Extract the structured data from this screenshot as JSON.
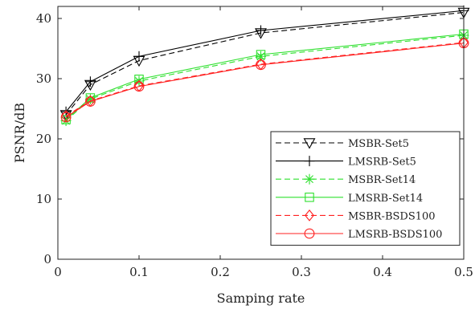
{
  "chart_data": {
    "type": "line",
    "title": "",
    "xlabel": "Samping rate",
    "ylabel": "PSNR/dB",
    "xlim": [
      0,
      0.5
    ],
    "ylim": [
      0,
      42
    ],
    "xticks": [
      0,
      0.1,
      0.2,
      0.3,
      0.4,
      0.5
    ],
    "xtick_labels": [
      "0",
      "0.1",
      "0.2",
      "0.3",
      "0.4",
      "0.5"
    ],
    "yticks": [
      0,
      10,
      20,
      30,
      40
    ],
    "ytick_labels": [
      "0",
      "10",
      "20",
      "30",
      "40"
    ],
    "grid": false,
    "legend_position": "bottom-right",
    "x": [
      0.01,
      0.04,
      0.1,
      0.25,
      0.5
    ],
    "series": [
      {
        "name": "MSBR-Set5",
        "values": [
          24.0,
          29.0,
          33.0,
          37.6,
          41.0
        ],
        "color": "#000000",
        "dash": "dashed",
        "marker": "triangle-down"
      },
      {
        "name": "LMSRB-Set5",
        "values": [
          24.5,
          29.5,
          33.7,
          38.0,
          41.3
        ],
        "color": "#000000",
        "dash": "solid",
        "marker": "plus"
      },
      {
        "name": "MSBR-Set14",
        "values": [
          23.0,
          26.6,
          29.6,
          33.7,
          37.2
        ],
        "color": "#2ee02e",
        "dash": "dashed",
        "marker": "asterisk"
      },
      {
        "name": "LMSRB-Set14",
        "values": [
          23.2,
          26.8,
          29.9,
          34.0,
          37.4
        ],
        "color": "#2ee02e",
        "dash": "solid",
        "marker": "square"
      },
      {
        "name": "MSBR-BSDS100",
        "values": [
          23.8,
          26.3,
          28.8,
          32.4,
          36.0
        ],
        "color": "#ff2020",
        "dash": "dashed",
        "marker": "diamond"
      },
      {
        "name": "LMSRB-BSDS100",
        "values": [
          23.6,
          26.2,
          28.7,
          32.3,
          35.9
        ],
        "color": "#ff2020",
        "dash": "solid",
        "marker": "circle"
      }
    ]
  }
}
